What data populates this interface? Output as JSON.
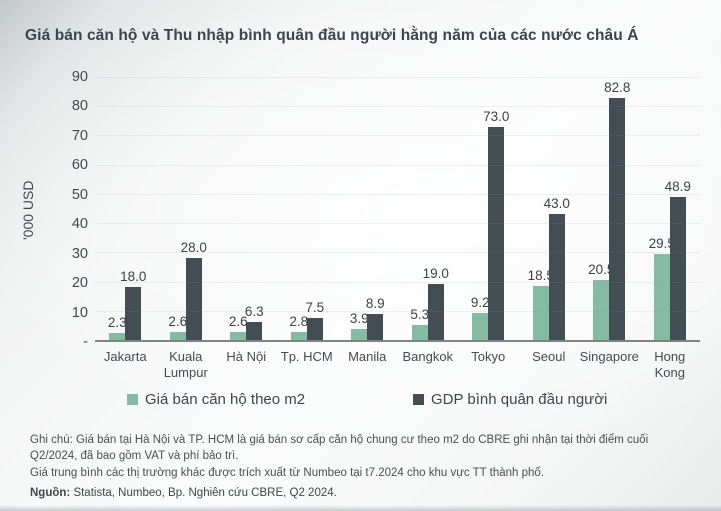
{
  "title": "Giá bán căn hộ và Thu nhập bình quân đầu người hằng năm của các nước châu Á",
  "y_axis": {
    "unit_label": "'000 USD",
    "ticks": [
      "90",
      "80",
      "70",
      "60",
      "50",
      "40",
      "30",
      "20",
      "10",
      "-"
    ]
  },
  "legend": {
    "items": [
      {
        "label": "Giá bán căn hộ theo m2",
        "color": "#85bba1"
      },
      {
        "label": "GDP bình quân đầu người",
        "color": "#424e54"
      }
    ]
  },
  "notes": {
    "line1": "Ghi chú: Giá bán tại Hà Nội và TP. HCM là giá bán sơ cấp căn hộ chung cư theo m2 do CBRE ghi nhận tại thời điểm cuối Q2/2024, đã bao gồm VAT và phí bảo trì.",
    "line2": "Giá trung bình các thị trường khác được trích xuất từ Numbeo tại t7.2024 cho khu vực TT thành phố."
  },
  "source": {
    "label": "Nguồn:",
    "text": "Statista, Numbeo, Bp. Nghiên cứu CBRE, Q2 2024."
  },
  "chart_data": {
    "type": "bar",
    "title": "Giá bán căn hộ và Thu nhập bình quân đầu người hằng năm của các nước châu Á",
    "categories": [
      "Jakarta",
      "Kuala Lumpur",
      "Hà Nội",
      "Tp. HCM",
      "Manila",
      "Bangkok",
      "Tokyo",
      "Seoul",
      "Singapore",
      "Hong Kong"
    ],
    "tick_labels": [
      "Jakarta",
      "Kuala\nLumpur",
      "Hà Nội",
      "Tp. HCM",
      "Manila",
      "Bangkok",
      "Tokyo",
      "Seoul",
      "Singapore",
      "Hong\nKong"
    ],
    "series": [
      {
        "name": "Giá bán căn hộ theo m2",
        "color": "#85bba1",
        "values": [
          2.3,
          2.6,
          2.6,
          2.8,
          3.9,
          5.3,
          9.2,
          18.5,
          20.5,
          29.5
        ],
        "labels": [
          "2.3",
          "2.6",
          "2.6",
          "2.8",
          "3.9",
          "5.3",
          "9.2",
          "18.5",
          "20.5",
          "29.5"
        ]
      },
      {
        "name": "GDP bình quân đầu người",
        "color": "#424e54",
        "values": [
          18.0,
          28.0,
          6.3,
          7.5,
          8.9,
          19.0,
          73.0,
          43.0,
          82.8,
          48.9
        ],
        "labels": [
          "18.0",
          "28.0",
          "6.3",
          "7.5",
          "8.9",
          "19.0",
          "73.0",
          "43.0",
          "82.8",
          "48.9"
        ]
      }
    ],
    "xlabel": "",
    "ylabel": "'000 USD",
    "ylim": [
      0,
      90
    ],
    "grid": true,
    "legend_position": "bottom"
  }
}
